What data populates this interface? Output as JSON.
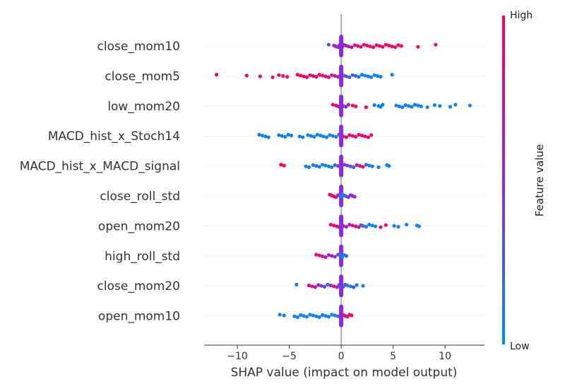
{
  "chart_data": {
    "type": "scatter",
    "title": "",
    "xlabel": "SHAP value (impact on model output)",
    "ylabel": "",
    "xlim": [
      -13.2,
      13.8
    ],
    "xticks": [
      -10,
      -5,
      0,
      5,
      10
    ],
    "xtick_labels": [
      "−10",
      "−5",
      "0",
      "5",
      "10"
    ],
    "grid": false,
    "colorbar": {
      "title": "Feature value",
      "high_label": "High",
      "low_label": "Low",
      "high_color": "#ff0052",
      "mid_color": "#8a2be2",
      "low_color": "#008bfb"
    },
    "features": [
      {
        "name": "close_mom10",
        "label": "close_mom10",
        "points": [
          [
            -1.2,
            0.3
          ],
          [
            -0.7,
            0.4
          ],
          [
            -0.5,
            0.7
          ],
          [
            -0.3,
            0.6
          ],
          [
            -0.15,
            0.5
          ],
          [
            0,
            0.5
          ],
          [
            0.1,
            0.55
          ],
          [
            0.25,
            0.6
          ],
          [
            0.45,
            0.6
          ],
          [
            0.7,
            0.7
          ],
          [
            1.0,
            0.8
          ],
          [
            1.3,
            0.85
          ],
          [
            1.6,
            0.9
          ],
          [
            1.9,
            0.9
          ],
          [
            2.2,
            0.9
          ],
          [
            2.5,
            0.95
          ],
          [
            2.8,
            0.95
          ],
          [
            3.1,
            0.95
          ],
          [
            3.4,
            0.95
          ],
          [
            3.7,
            0.95
          ],
          [
            4.0,
            0.95
          ],
          [
            4.3,
            0.95
          ],
          [
            4.6,
            0.95
          ],
          [
            4.9,
            0.95
          ],
          [
            5.2,
            0.95
          ],
          [
            5.5,
            0.95
          ],
          [
            5.8,
            0.95
          ],
          [
            7.4,
            0.95
          ],
          [
            9.1,
            0.95
          ]
        ]
      },
      {
        "name": "close_mom5",
        "label": "close_mom5",
        "points": [
          [
            -12.0,
            0.95
          ],
          [
            -9.1,
            0.95
          ],
          [
            -7.8,
            0.95
          ],
          [
            -6.6,
            0.95
          ],
          [
            -6.0,
            0.95
          ],
          [
            -5.6,
            0.95
          ],
          [
            -5.2,
            0.95
          ],
          [
            -4.2,
            0.95
          ],
          [
            -3.9,
            0.95
          ],
          [
            -3.6,
            0.95
          ],
          [
            -3.3,
            0.95
          ],
          [
            -3.0,
            0.95
          ],
          [
            -2.7,
            0.95
          ],
          [
            -2.4,
            0.95
          ],
          [
            -2.1,
            0.95
          ],
          [
            -1.8,
            0.9
          ],
          [
            -1.5,
            0.9
          ],
          [
            -1.2,
            0.85
          ],
          [
            -0.9,
            0.8
          ],
          [
            -0.6,
            0.75
          ],
          [
            -0.3,
            0.6
          ],
          [
            0,
            0.5
          ],
          [
            0.25,
            0.4
          ],
          [
            0.5,
            0.35
          ],
          [
            0.8,
            0.3
          ],
          [
            1.1,
            0.25
          ],
          [
            1.4,
            0.15
          ],
          [
            1.7,
            0.1
          ],
          [
            2.0,
            0.05
          ],
          [
            2.3,
            0.05
          ],
          [
            2.6,
            0.05
          ],
          [
            2.9,
            0.05
          ],
          [
            3.2,
            0.05
          ],
          [
            3.5,
            0.05
          ],
          [
            3.8,
            0.05
          ],
          [
            4.9,
            0.05
          ]
        ]
      },
      {
        "name": "low_mom20",
        "label": "low_mom20",
        "points": [
          [
            -0.8,
            0.95
          ],
          [
            -0.5,
            0.9
          ],
          [
            -0.3,
            0.8
          ],
          [
            -0.1,
            0.6
          ],
          [
            0,
            0.5
          ],
          [
            0.2,
            0.5
          ],
          [
            0.45,
            0.45
          ],
          [
            0.7,
            0.6
          ],
          [
            1.1,
            0.9
          ],
          [
            1.4,
            0.9
          ],
          [
            2.4,
            0.95
          ],
          [
            3.2,
            0.1
          ],
          [
            3.6,
            0.05
          ],
          [
            3.8,
            0.05
          ],
          [
            4.0,
            0.05
          ],
          [
            5.3,
            0.05
          ],
          [
            5.6,
            0.05
          ],
          [
            5.9,
            0.05
          ],
          [
            6.2,
            0.05
          ],
          [
            6.5,
            0.05
          ],
          [
            6.8,
            0.05
          ],
          [
            7.1,
            0.05
          ],
          [
            7.4,
            0.05
          ],
          [
            7.7,
            0.05
          ],
          [
            8.3,
            0.05
          ],
          [
            9.0,
            0.05
          ],
          [
            9.5,
            0.05
          ],
          [
            10.5,
            0.05
          ],
          [
            11.0,
            0.05
          ],
          [
            12.4,
            0.05
          ]
        ]
      },
      {
        "name": "MACD_hist_x_Stoch14",
        "label": "MACD_hist_x_Stoch14",
        "points": [
          [
            -7.9,
            0.05
          ],
          [
            -7.6,
            0.05
          ],
          [
            -7.3,
            0.05
          ],
          [
            -7.0,
            0.05
          ],
          [
            -6.0,
            0.05
          ],
          [
            -5.7,
            0.05
          ],
          [
            -5.4,
            0.05
          ],
          [
            -5.1,
            0.05
          ],
          [
            -4.8,
            0.05
          ],
          [
            -4.0,
            0.05
          ],
          [
            -3.7,
            0.05
          ],
          [
            -3.2,
            0.05
          ],
          [
            -2.9,
            0.05
          ],
          [
            -2.6,
            0.05
          ],
          [
            -2.3,
            0.05
          ],
          [
            -2.0,
            0.05
          ],
          [
            -1.7,
            0.05
          ],
          [
            -1.4,
            0.05
          ],
          [
            -1.1,
            0.05
          ],
          [
            -0.8,
            0.05
          ],
          [
            -0.5,
            0.1
          ],
          [
            -0.2,
            0.3
          ],
          [
            0,
            0.5
          ],
          [
            0.2,
            0.7
          ],
          [
            0.5,
            0.9
          ],
          [
            0.8,
            0.95
          ],
          [
            1.1,
            0.95
          ],
          [
            1.4,
            0.95
          ],
          [
            1.7,
            0.95
          ],
          [
            2.0,
            0.95
          ],
          [
            2.3,
            0.95
          ],
          [
            2.6,
            0.95
          ],
          [
            2.9,
            0.95
          ]
        ]
      },
      {
        "name": "MACD_hist_x_MACD_signal",
        "label": "MACD_hist_x_MACD_signal",
        "points": [
          [
            -5.8,
            0.95
          ],
          [
            -5.5,
            0.95
          ],
          [
            -3.4,
            0.05
          ],
          [
            -3.1,
            0.05
          ],
          [
            -2.7,
            0.1
          ],
          [
            -2.4,
            0.2
          ],
          [
            -2.1,
            0.05
          ],
          [
            -1.8,
            0.05
          ],
          [
            -1.5,
            0.05
          ],
          [
            -1.2,
            0.05
          ],
          [
            -0.9,
            0.1
          ],
          [
            -0.6,
            0.2
          ],
          [
            -0.3,
            0.4
          ],
          [
            0,
            0.5
          ],
          [
            0.3,
            0.6
          ],
          [
            0.6,
            0.4
          ],
          [
            0.9,
            0.3
          ],
          [
            1.2,
            0.2
          ],
          [
            1.5,
            0.6
          ],
          [
            1.8,
            0.9
          ],
          [
            2.1,
            0.9
          ],
          [
            2.4,
            0.3
          ],
          [
            2.7,
            0.05
          ],
          [
            3.0,
            0.1
          ],
          [
            3.6,
            0.05
          ],
          [
            4.4,
            0.05
          ],
          [
            4.6,
            0.05
          ]
        ]
      },
      {
        "name": "close_roll_std",
        "label": "close_roll_std",
        "points": [
          [
            -1.1,
            0.95
          ],
          [
            -0.9,
            0.95
          ],
          [
            -0.7,
            0.9
          ],
          [
            -0.5,
            0.85
          ],
          [
            -0.3,
            0.6
          ],
          [
            -0.1,
            0.3
          ],
          [
            0,
            0.1
          ],
          [
            0.15,
            0.05
          ],
          [
            0.3,
            0.1
          ],
          [
            0.5,
            0.3
          ],
          [
            0.7,
            0.45
          ],
          [
            0.9,
            0.5
          ],
          [
            1.1,
            0.55
          ],
          [
            1.3,
            0.6
          ]
        ]
      },
      {
        "name": "open_mom20",
        "label": "open_mom20",
        "points": [
          [
            -1.0,
            0.95
          ],
          [
            -0.7,
            0.95
          ],
          [
            -0.4,
            0.9
          ],
          [
            -0.2,
            0.7
          ],
          [
            0,
            0.5
          ],
          [
            0.2,
            0.55
          ],
          [
            0.5,
            0.6
          ],
          [
            0.8,
            0.7
          ],
          [
            1.1,
            0.8
          ],
          [
            1.4,
            0.85
          ],
          [
            1.7,
            0.9
          ],
          [
            1.9,
            0.3
          ],
          [
            2.1,
            0.2
          ],
          [
            2.4,
            0.1
          ],
          [
            2.7,
            0.05
          ],
          [
            3.0,
            0.05
          ],
          [
            3.3,
            0.05
          ],
          [
            3.8,
            0.95
          ],
          [
            4.3,
            0.95
          ],
          [
            5.1,
            0.05
          ],
          [
            5.5,
            0.05
          ],
          [
            6.3,
            0.05
          ],
          [
            7.3,
            0.05
          ],
          [
            7.5,
            0.05
          ]
        ]
      },
      {
        "name": "high_roll_std",
        "label": "high_roll_std",
        "points": [
          [
            -2.4,
            0.9
          ],
          [
            -2.1,
            0.85
          ],
          [
            -1.8,
            0.8
          ],
          [
            -1.5,
            0.7
          ],
          [
            -1.2,
            0.65
          ],
          [
            -0.9,
            0.6
          ],
          [
            -0.6,
            0.55
          ],
          [
            -0.3,
            0.4
          ],
          [
            -0.1,
            0.2
          ],
          [
            0,
            0.05
          ],
          [
            0.1,
            0.05
          ],
          [
            0.3,
            0.1
          ],
          [
            0.5,
            0.15
          ]
        ]
      },
      {
        "name": "close_mom20",
        "label": "close_mom20",
        "points": [
          [
            -4.3,
            0.05
          ],
          [
            -3.1,
            0.95
          ],
          [
            -2.8,
            0.6
          ],
          [
            -2.5,
            0.9
          ],
          [
            -2.2,
            0.7
          ],
          [
            -1.9,
            0.4
          ],
          [
            -1.6,
            0.3
          ],
          [
            -1.3,
            0.2
          ],
          [
            -1.0,
            0.5
          ],
          [
            -0.7,
            0.9
          ],
          [
            -0.4,
            0.6
          ],
          [
            -0.2,
            0.4
          ],
          [
            0,
            0.5
          ],
          [
            0.2,
            0.3
          ],
          [
            0.4,
            0.2
          ],
          [
            0.6,
            0.15
          ],
          [
            0.9,
            0.1
          ],
          [
            1.2,
            0.3
          ],
          [
            1.5,
            0.05
          ],
          [
            2.1,
            0.05
          ]
        ]
      },
      {
        "name": "open_mom10",
        "label": "open_mom10",
        "points": [
          [
            -5.9,
            0.05
          ],
          [
            -5.5,
            0.05
          ],
          [
            -4.5,
            0.05
          ],
          [
            -4.2,
            0.05
          ],
          [
            -3.9,
            0.05
          ],
          [
            -3.6,
            0.05
          ],
          [
            -3.3,
            0.05
          ],
          [
            -3.0,
            0.05
          ],
          [
            -2.7,
            0.05
          ],
          [
            -2.4,
            0.05
          ],
          [
            -2.1,
            0.05
          ],
          [
            -1.8,
            0.05
          ],
          [
            -1.5,
            0.05
          ],
          [
            -1.2,
            0.05
          ],
          [
            -0.9,
            0.05
          ],
          [
            -0.6,
            0.1
          ],
          [
            -0.3,
            0.2
          ],
          [
            0,
            0.5
          ],
          [
            0.2,
            0.7
          ],
          [
            0.4,
            0.8
          ],
          [
            0.6,
            0.85
          ],
          [
            0.8,
            0.9
          ],
          [
            1.0,
            0.95
          ]
        ]
      }
    ]
  }
}
